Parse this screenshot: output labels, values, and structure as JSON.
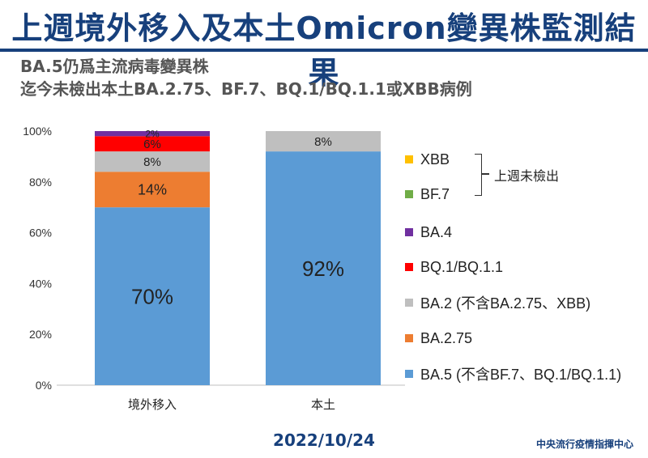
{
  "header": {
    "title": "上週境外移入及本土Omicron變異株監測結果",
    "subtitle_line1": "BA.5仍爲主流病毒變異株",
    "subtitle_line2": "迄今未檢出本土BA.2.75、BF.7、BQ.1/BQ.1.1或XBB病例"
  },
  "legend_note": "上週未檢出",
  "date": "2022/10/24",
  "footer": "中央流行疫情指揮中心",
  "chart_data": {
    "type": "bar",
    "stacked": true,
    "categories": [
      "境外移入",
      "本土"
    ],
    "ylim": [
      0,
      100
    ],
    "yticks": [
      "0%",
      "20%",
      "40%",
      "60%",
      "80%",
      "100%"
    ],
    "series": [
      {
        "name": "BA.5 (不含BF.7、BQ.1/BQ.1.1)",
        "color": "#5b9bd5",
        "values": [
          70,
          92
        ],
        "labels": [
          "70%",
          "92%"
        ]
      },
      {
        "name": "BA.2.75",
        "color": "#ed7d31",
        "values": [
          14,
          0
        ],
        "labels": [
          "14%",
          ""
        ]
      },
      {
        "name": "BA.2 (不含BA.2.75、XBB)",
        "color": "#bfbfbf",
        "values": [
          8,
          8
        ],
        "labels": [
          "8%",
          "8%"
        ]
      },
      {
        "name": "BQ.1/BQ.1.1",
        "color": "#ff0000",
        "values": [
          6,
          0
        ],
        "labels": [
          "6%",
          ""
        ]
      },
      {
        "name": "BA.4",
        "color": "#7030a0",
        "values": [
          2,
          0
        ],
        "labels": [
          "2%",
          ""
        ]
      },
      {
        "name": "BF.7",
        "color": "#70ad47",
        "values": [
          0,
          0
        ],
        "labels": [
          "",
          ""
        ]
      },
      {
        "name": "XBB",
        "color": "#ffc000",
        "values": [
          0,
          0
        ],
        "labels": [
          "",
          ""
        ]
      }
    ],
    "legend_position": "right"
  }
}
